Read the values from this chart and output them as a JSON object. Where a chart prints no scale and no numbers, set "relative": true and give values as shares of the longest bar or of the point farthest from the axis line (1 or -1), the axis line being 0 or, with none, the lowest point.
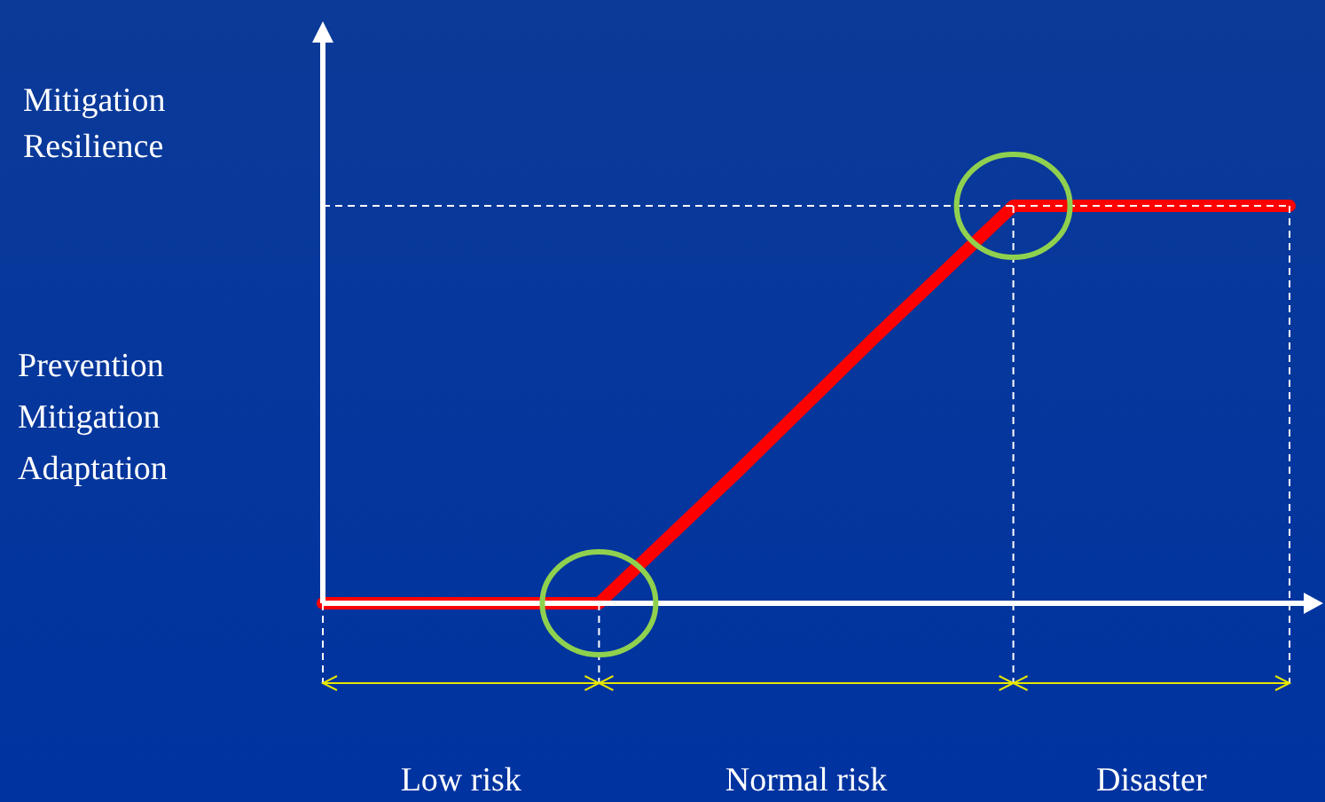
{
  "chart_data": {
    "type": "line",
    "relative": true,
    "line_style": "solid",
    "categories": [
      null,
      null,
      null,
      null,
      null,
      null,
      null,
      null
    ],
    "series": [
      {
        "color": "#ff0000",
        "values": [
          0,
          0,
          0,
          0.33,
          0.67,
          1,
          1,
          1
        ]
      }
    ],
    "annotations": [
      "Mitigation\nResilience",
      "Prevention\nMitigation\nAdaptation",
      "Low risk",
      "Normal risk",
      "Disaster"
    ]
  }
}
